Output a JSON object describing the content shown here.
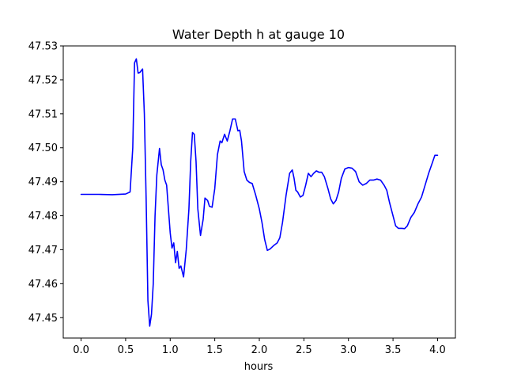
{
  "chart_data": {
    "type": "line",
    "title": "Water Depth h at gauge 10",
    "xlabel": "hours",
    "ylabel": "",
    "xlim": [
      -0.2,
      4.2
    ],
    "ylim": [
      47.444,
      47.53
    ],
    "x_ticks": [
      0.0,
      0.5,
      1.0,
      1.5,
      2.0,
      2.5,
      3.0,
      3.5,
      4.0
    ],
    "x_tick_labels": [
      "0.0",
      "0.5",
      "1.0",
      "1.5",
      "2.0",
      "2.5",
      "3.0",
      "3.5",
      "4.0"
    ],
    "y_ticks": [
      47.45,
      47.46,
      47.47,
      47.48,
      47.49,
      47.5,
      47.51,
      47.52,
      47.53
    ],
    "y_tick_labels": [
      "47.45",
      "47.46",
      "47.47",
      "47.48",
      "47.49",
      "47.50",
      "47.51",
      "47.52",
      "47.53"
    ],
    "grid": false,
    "series": [
      {
        "color": "#0000ff",
        "points": [
          [
            0.0,
            47.4863
          ],
          [
            0.2,
            47.4863
          ],
          [
            0.35,
            47.4862
          ],
          [
            0.5,
            47.4864
          ],
          [
            0.55,
            47.487
          ],
          [
            0.58,
            47.5
          ],
          [
            0.6,
            47.525
          ],
          [
            0.62,
            47.5262
          ],
          [
            0.64,
            47.522
          ],
          [
            0.66,
            47.5222
          ],
          [
            0.69,
            47.5232
          ],
          [
            0.71,
            47.51
          ],
          [
            0.73,
            47.485
          ],
          [
            0.75,
            47.455
          ],
          [
            0.77,
            47.4475
          ],
          [
            0.79,
            47.451
          ],
          [
            0.81,
            47.46
          ],
          [
            0.83,
            47.48
          ],
          [
            0.85,
            47.492
          ],
          [
            0.88,
            47.4998
          ],
          [
            0.9,
            47.495
          ],
          [
            0.92,
            47.4935
          ],
          [
            0.94,
            47.4905
          ],
          [
            0.96,
            47.489
          ],
          [
            0.98,
            47.482
          ],
          [
            1.0,
            47.475
          ],
          [
            1.02,
            47.4705
          ],
          [
            1.04,
            47.472
          ],
          [
            1.06,
            47.4662
          ],
          [
            1.08,
            47.4695
          ],
          [
            1.1,
            47.4645
          ],
          [
            1.12,
            47.4652
          ],
          [
            1.15,
            47.462
          ],
          [
            1.18,
            47.47
          ],
          [
            1.21,
            47.482
          ],
          [
            1.23,
            47.496
          ],
          [
            1.25,
            47.5045
          ],
          [
            1.27,
            47.504
          ],
          [
            1.29,
            47.496
          ],
          [
            1.31,
            47.482
          ],
          [
            1.34,
            47.4742
          ],
          [
            1.37,
            47.479
          ],
          [
            1.39,
            47.4852
          ],
          [
            1.42,
            47.4845
          ],
          [
            1.44,
            47.4828
          ],
          [
            1.47,
            47.4825
          ],
          [
            1.5,
            47.488
          ],
          [
            1.53,
            47.498
          ],
          [
            1.56,
            47.502
          ],
          [
            1.58,
            47.5015
          ],
          [
            1.61,
            47.504
          ],
          [
            1.64,
            47.502
          ],
          [
            1.67,
            47.505
          ],
          [
            1.7,
            47.5085
          ],
          [
            1.73,
            47.5085
          ],
          [
            1.76,
            47.505
          ],
          [
            1.78,
            47.5052
          ],
          [
            1.8,
            47.502
          ],
          [
            1.83,
            47.493
          ],
          [
            1.86,
            47.4905
          ],
          [
            1.89,
            47.4898
          ],
          [
            1.92,
            47.4895
          ],
          [
            1.96,
            47.486
          ],
          [
            2.0,
            47.482
          ],
          [
            2.03,
            47.478
          ],
          [
            2.06,
            47.473
          ],
          [
            2.09,
            47.4698
          ],
          [
            2.12,
            47.4702
          ],
          [
            2.16,
            47.4712
          ],
          [
            2.2,
            47.472
          ],
          [
            2.23,
            47.4735
          ],
          [
            2.26,
            47.478
          ],
          [
            2.3,
            47.486
          ],
          [
            2.34,
            47.4925
          ],
          [
            2.37,
            47.4935
          ],
          [
            2.39,
            47.491
          ],
          [
            2.41,
            47.4875
          ],
          [
            2.43,
            47.487
          ],
          [
            2.46,
            47.4855
          ],
          [
            2.49,
            47.486
          ],
          [
            2.52,
            47.489
          ],
          [
            2.55,
            47.4925
          ],
          [
            2.58,
            47.4915
          ],
          [
            2.61,
            47.4925
          ],
          [
            2.64,
            47.4932
          ],
          [
            2.67,
            47.4928
          ],
          [
            2.7,
            47.4928
          ],
          [
            2.73,
            47.4915
          ],
          [
            2.77,
            47.488
          ],
          [
            2.8,
            47.485
          ],
          [
            2.83,
            47.4835
          ],
          [
            2.86,
            47.4845
          ],
          [
            2.89,
            47.487
          ],
          [
            2.92,
            47.491
          ],
          [
            2.96,
            47.4938
          ],
          [
            3.0,
            47.4942
          ],
          [
            3.04,
            47.494
          ],
          [
            3.08,
            47.493
          ],
          [
            3.12,
            47.49
          ],
          [
            3.16,
            47.489
          ],
          [
            3.2,
            47.4895
          ],
          [
            3.24,
            47.4905
          ],
          [
            3.28,
            47.4905
          ],
          [
            3.32,
            47.4908
          ],
          [
            3.36,
            47.4905
          ],
          [
            3.4,
            47.489
          ],
          [
            3.43,
            47.4875
          ],
          [
            3.46,
            47.484
          ],
          [
            3.5,
            47.48
          ],
          [
            3.53,
            47.477
          ],
          [
            3.56,
            47.4763
          ],
          [
            3.6,
            47.4763
          ],
          [
            3.63,
            47.4762
          ],
          [
            3.66,
            47.477
          ],
          [
            3.7,
            47.4795
          ],
          [
            3.74,
            47.481
          ],
          [
            3.78,
            47.4835
          ],
          [
            3.82,
            47.4855
          ],
          [
            3.86,
            47.489
          ],
          [
            3.9,
            47.4925
          ],
          [
            3.94,
            47.4955
          ],
          [
            3.97,
            47.4978
          ],
          [
            4.0,
            47.4978
          ]
        ]
      }
    ]
  }
}
